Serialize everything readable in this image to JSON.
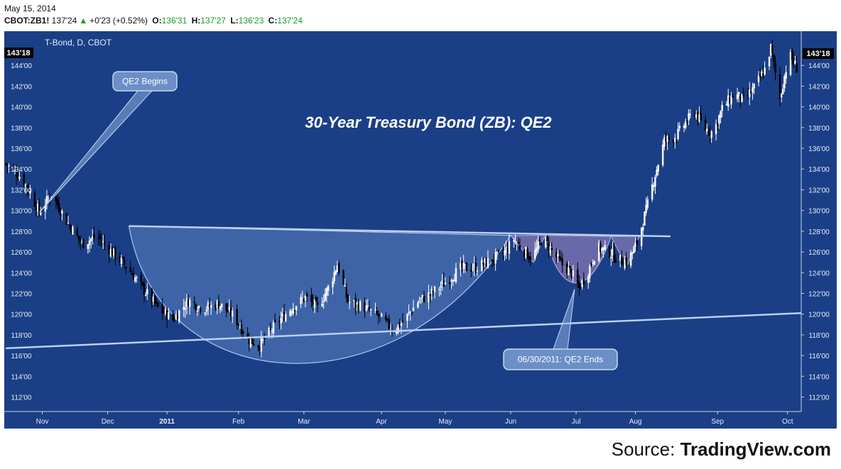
{
  "header": {
    "date": "May 15, 2014",
    "symbol": "CBOT:ZB1!",
    "last": "137'24",
    "change": "+0'23 (+0.52%)",
    "o_label": "O:",
    "o_val": "136'31",
    "h_label": "H:",
    "h_val": "137'27",
    "l_label": "L:",
    "l_val": "136'23",
    "c_label": "C:",
    "c_val": "137'24"
  },
  "chart_data": {
    "type": "candlestick",
    "title": "30-Year Treasury Bond (ZB): QE2",
    "instrument_label": "T-Bond, D, CBOT",
    "last_price_label": "143'18",
    "y_ticks": [
      "112'00",
      "114'00",
      "116'00",
      "118'00",
      "120'00",
      "122'00",
      "124'00",
      "126'00",
      "128'00",
      "130'00",
      "132'00",
      "134'00",
      "136'00",
      "138'00",
      "140'00",
      "142'00",
      "144'00"
    ],
    "y_tick_values": [
      112,
      114,
      116,
      118,
      120,
      122,
      124,
      126,
      128,
      130,
      132,
      134,
      136,
      138,
      140,
      142,
      144
    ],
    "ylim": [
      110.6,
      147.3
    ],
    "x_ticks": [
      "Nov",
      "Dec",
      "2011",
      "Feb",
      "Mar",
      "Apr",
      "May",
      "Jun",
      "Jul",
      "Aug",
      "Sep",
      "Oct"
    ],
    "x_tick_days": [
      19,
      62,
      101,
      148,
      191,
      242,
      284,
      327,
      370,
      409,
      463,
      509
    ],
    "xlim": [
      -6,
      518
    ],
    "annotations": [
      {
        "text": "QE2 Begins",
        "day": 17,
        "price": 129.8
      },
      {
        "text": "06/30/2011: QE2 Ends",
        "day": 369,
        "price": 122.4
      }
    ],
    "trendlines": [
      {
        "name": "neckline",
        "from": [
          76,
          128.5
        ],
        "to": [
          432,
          127.5
        ]
      },
      {
        "name": "support",
        "from": [
          -5,
          116.7
        ],
        "to": [
          518,
          120.1
        ]
      }
    ],
    "key_prices": [
      {
        "day": -5,
        "price": 134.5
      },
      {
        "day": 5,
        "price": 133.2
      },
      {
        "day": 12,
        "price": 131.5
      },
      {
        "day": 17,
        "price": 129.8
      },
      {
        "day": 25,
        "price": 131.6
      },
      {
        "day": 35,
        "price": 129.0
      },
      {
        "day": 45,
        "price": 126.8
      },
      {
        "day": 55,
        "price": 127.5
      },
      {
        "day": 62,
        "price": 126.4
      },
      {
        "day": 75,
        "price": 124.5
      },
      {
        "day": 85,
        "price": 122.5
      },
      {
        "day": 95,
        "price": 120.6
      },
      {
        "day": 105,
        "price": 119.5
      },
      {
        "day": 115,
        "price": 121.3
      },
      {
        "day": 125,
        "price": 120.5
      },
      {
        "day": 135,
        "price": 121.0
      },
      {
        "day": 145,
        "price": 119.8
      },
      {
        "day": 155,
        "price": 117.5
      },
      {
        "day": 162,
        "price": 117.0
      },
      {
        "day": 172,
        "price": 118.9
      },
      {
        "day": 182,
        "price": 120.5
      },
      {
        "day": 192,
        "price": 121.6
      },
      {
        "day": 200,
        "price": 120.6
      },
      {
        "day": 208,
        "price": 122.8
      },
      {
        "day": 213,
        "price": 124.8
      },
      {
        "day": 220,
        "price": 121.2
      },
      {
        "day": 230,
        "price": 120.7
      },
      {
        "day": 240,
        "price": 119.8
      },
      {
        "day": 250,
        "price": 118.4
      },
      {
        "day": 258,
        "price": 119.6
      },
      {
        "day": 266,
        "price": 121.2
      },
      {
        "day": 276,
        "price": 122.1
      },
      {
        "day": 285,
        "price": 123.2
      },
      {
        "day": 294,
        "price": 124.4
      },
      {
        "day": 304,
        "price": 124.5
      },
      {
        "day": 314,
        "price": 125.2
      },
      {
        "day": 322,
        "price": 125.8
      },
      {
        "day": 329,
        "price": 127.2
      },
      {
        "day": 335,
        "price": 126.2
      },
      {
        "day": 341,
        "price": 125.4
      },
      {
        "day": 348,
        "price": 127.4
      },
      {
        "day": 355,
        "price": 125.9
      },
      {
        "day": 360,
        "price": 124.9
      },
      {
        "day": 367,
        "price": 124.0
      },
      {
        "day": 372,
        "price": 122.5
      },
      {
        "day": 378,
        "price": 124.2
      },
      {
        "day": 384,
        "price": 126.4
      },
      {
        "day": 392,
        "price": 126.0
      },
      {
        "day": 398,
        "price": 125.2
      },
      {
        "day": 404,
        "price": 125.1
      },
      {
        "day": 410,
        "price": 126.8
      },
      {
        "day": 416,
        "price": 130.0
      },
      {
        "day": 422,
        "price": 133.5
      },
      {
        "day": 428,
        "price": 136.7
      },
      {
        "day": 436,
        "price": 137.2
      },
      {
        "day": 442,
        "price": 138.5
      },
      {
        "day": 448,
        "price": 139.5
      },
      {
        "day": 454,
        "price": 138.0
      },
      {
        "day": 460,
        "price": 137.5
      },
      {
        "day": 466,
        "price": 139.8
      },
      {
        "day": 474,
        "price": 141.3
      },
      {
        "day": 480,
        "price": 140.6
      },
      {
        "day": 487,
        "price": 141.8
      },
      {
        "day": 494,
        "price": 143.6
      },
      {
        "day": 498,
        "price": 145.7
      },
      {
        "day": 504,
        "price": 140.8
      },
      {
        "day": 510,
        "price": 145.1
      },
      {
        "day": 516,
        "price": 143.5
      }
    ]
  },
  "footer": {
    "source_label": "Source:",
    "source_name": "TradingView.com"
  }
}
